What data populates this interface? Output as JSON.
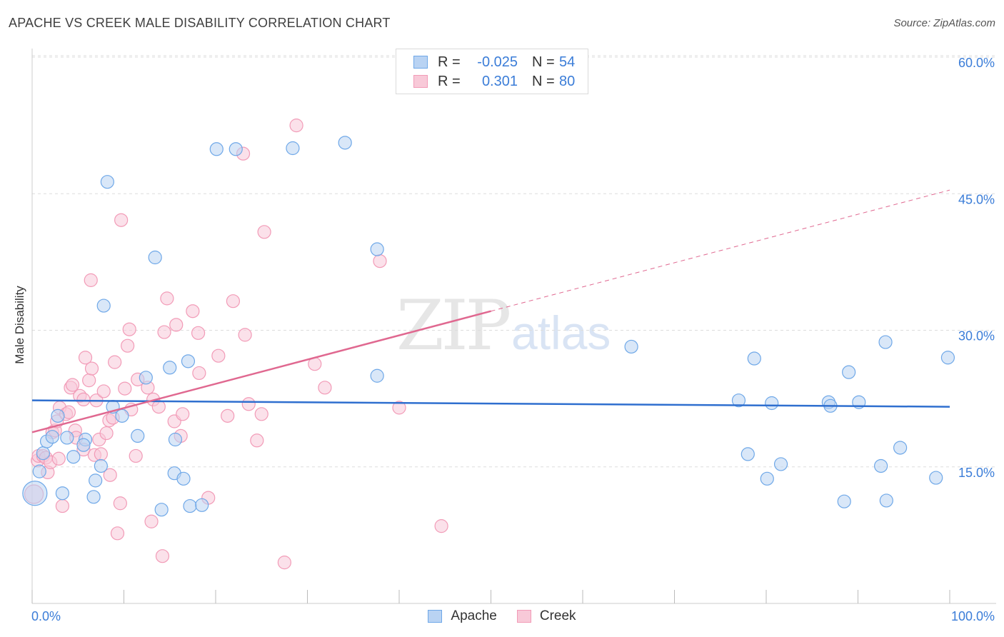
{
  "header": {
    "title": "APACHE VS CREEK MALE DISABILITY CORRELATION CHART",
    "source": "Source: ZipAtlas.com"
  },
  "watermark": {
    "zip": "ZIP",
    "atlas": "atlas"
  },
  "colors": {
    "apache": "#6fa8e8",
    "apache_fill": "#b9d3f3",
    "apache_line": "#2f6fcf",
    "creek": "#f29bb7",
    "creek_fill": "#f8c9d8",
    "creek_line": "#e06890",
    "tick_label": "#3b7dd8",
    "grid": "#dddddd"
  },
  "legend_top": {
    "rows": [
      {
        "r_label": "R =",
        "r_value": "-0.025",
        "n_label": "N =",
        "n_value": "54"
      },
      {
        "r_label": "R =",
        "r_value": "0.301",
        "n_label": "N =",
        "n_value": "80"
      }
    ]
  },
  "legend_bottom": {
    "apache": "Apache",
    "creek": "Creek"
  },
  "chart_data": {
    "type": "scatter",
    "title": "APACHE VS CREEK MALE DISABILITY CORRELATION CHART",
    "xlabel": "",
    "ylabel": "Male Disability",
    "xlim": [
      0,
      100
    ],
    "ylim": [
      0,
      60
    ],
    "x_tick_labels": [
      "0.0%",
      "100.0%"
    ],
    "y_ticks": [
      15,
      30,
      45,
      60
    ],
    "y_tick_labels": [
      "15.0%",
      "30.0%",
      "45.0%",
      "60.0%"
    ],
    "grid": true,
    "series": [
      {
        "name": "Apache",
        "r": -0.025,
        "n": 54,
        "trend": {
          "x0": 0,
          "y0": 22.3,
          "x1": 100,
          "y1": 21.6,
          "dashed_from": null
        },
        "points": [
          [
            0.3,
            12.1,
            3
          ],
          [
            0.8,
            14.5,
            1
          ],
          [
            1.2,
            16.5,
            1
          ],
          [
            1.6,
            17.8,
            1
          ],
          [
            2.2,
            18.3,
            1
          ],
          [
            2.8,
            20.6,
            1
          ],
          [
            3.3,
            12.1,
            1
          ],
          [
            3.8,
            18.2,
            1
          ],
          [
            4.5,
            16.1,
            1
          ],
          [
            5.8,
            18.0,
            1
          ],
          [
            5.6,
            17.4,
            1
          ],
          [
            6.7,
            11.7,
            1
          ],
          [
            6.9,
            13.5,
            1
          ],
          [
            7.5,
            15.1,
            1
          ],
          [
            7.8,
            32.7,
            1
          ],
          [
            8.2,
            46.3,
            1
          ],
          [
            8.8,
            21.6,
            1
          ],
          [
            9.8,
            20.6,
            1
          ],
          [
            11.5,
            18.4,
            1
          ],
          [
            12.4,
            24.8,
            1
          ],
          [
            13.4,
            38.0,
            1
          ],
          [
            14.1,
            10.3,
            1
          ],
          [
            15.0,
            25.9,
            1
          ],
          [
            15.5,
            14.3,
            1
          ],
          [
            15.6,
            18.0,
            1
          ],
          [
            16.5,
            13.7,
            1
          ],
          [
            17.0,
            26.6,
            1
          ],
          [
            17.2,
            10.7,
            1
          ],
          [
            18.5,
            10.8,
            1
          ],
          [
            20.1,
            49.9,
            1
          ],
          [
            22.2,
            49.9,
            1
          ],
          [
            28.4,
            50.0,
            1
          ],
          [
            34.1,
            50.6,
            1
          ],
          [
            37.6,
            38.9,
            1
          ],
          [
            37.6,
            25.0,
            1
          ],
          [
            65.3,
            28.2,
            1
          ],
          [
            77.0,
            22.3,
            1
          ],
          [
            78.7,
            26.9,
            1
          ],
          [
            78.0,
            16.4,
            1
          ],
          [
            80.1,
            13.7,
            1
          ],
          [
            80.6,
            22.0,
            1
          ],
          [
            81.6,
            15.3,
            1
          ],
          [
            86.8,
            22.1,
            1
          ],
          [
            87.0,
            21.7,
            1
          ],
          [
            88.5,
            11.2,
            1
          ],
          [
            89.0,
            25.4,
            1
          ],
          [
            90.1,
            22.1,
            1
          ],
          [
            93.0,
            28.7,
            1
          ],
          [
            92.5,
            15.1,
            1
          ],
          [
            93.1,
            11.3,
            1
          ],
          [
            94.6,
            17.1,
            1
          ],
          [
            98.5,
            13.8,
            1
          ],
          [
            99.8,
            27.0,
            1
          ]
        ]
      },
      {
        "name": "Creek",
        "r": 0.301,
        "n": 80,
        "trend": {
          "x0": 0,
          "y0": 18.8,
          "x1": 100,
          "y1": 45.4,
          "dashed_from": 50
        },
        "points": [
          [
            0.2,
            12.0,
            2
          ],
          [
            0.6,
            15.7,
            1
          ],
          [
            0.7,
            16.2,
            1
          ],
          [
            1.2,
            16.2,
            1
          ],
          [
            1.5,
            16.0,
            1
          ],
          [
            1.7,
            14.4,
            1
          ],
          [
            2.0,
            15.5,
            1
          ],
          [
            2.2,
            18.8,
            1
          ],
          [
            2.5,
            19.0,
            1
          ],
          [
            2.7,
            20.0,
            1
          ],
          [
            2.9,
            15.9,
            1
          ],
          [
            3.0,
            21.5,
            1
          ],
          [
            3.3,
            10.7,
            1
          ],
          [
            3.7,
            20.8,
            1
          ],
          [
            4.0,
            21.0,
            1
          ],
          [
            4.2,
            23.7,
            1
          ],
          [
            4.4,
            24.0,
            1
          ],
          [
            4.7,
            19.0,
            1
          ],
          [
            4.8,
            18.2,
            1
          ],
          [
            5.2,
            22.8,
            1
          ],
          [
            5.6,
            22.4,
            1
          ],
          [
            5.6,
            16.9,
            1
          ],
          [
            5.8,
            27.0,
            1
          ],
          [
            6.2,
            24.5,
            1
          ],
          [
            6.4,
            35.5,
            1
          ],
          [
            6.5,
            25.8,
            1
          ],
          [
            6.8,
            16.3,
            1
          ],
          [
            7.0,
            22.3,
            1
          ],
          [
            7.3,
            18.0,
            1
          ],
          [
            7.5,
            16.4,
            1
          ],
          [
            7.8,
            23.3,
            1
          ],
          [
            8.1,
            18.7,
            1
          ],
          [
            8.4,
            20.1,
            1
          ],
          [
            8.5,
            14.1,
            1
          ],
          [
            8.8,
            20.4,
            1
          ],
          [
            9.0,
            26.5,
            1
          ],
          [
            9.3,
            7.7,
            1
          ],
          [
            9.6,
            11.0,
            1
          ],
          [
            9.7,
            42.1,
            1
          ],
          [
            10.1,
            23.6,
            1
          ],
          [
            10.4,
            28.3,
            1
          ],
          [
            10.6,
            30.1,
            1
          ],
          [
            10.8,
            21.3,
            1
          ],
          [
            11.3,
            16.2,
            1
          ],
          [
            11.5,
            24.6,
            1
          ],
          [
            12.6,
            23.7,
            1
          ],
          [
            13.0,
            9.0,
            1
          ],
          [
            13.2,
            22.4,
            1
          ],
          [
            13.8,
            21.6,
            1
          ],
          [
            14.2,
            5.2,
            1
          ],
          [
            14.4,
            29.8,
            1
          ],
          [
            14.7,
            33.5,
            1
          ],
          [
            15.5,
            20.0,
            1
          ],
          [
            15.7,
            30.6,
            1
          ],
          [
            16.2,
            18.4,
            1
          ],
          [
            16.4,
            20.8,
            1
          ],
          [
            17.5,
            32.1,
            1
          ],
          [
            18.1,
            29.7,
            1
          ],
          [
            18.2,
            25.3,
            1
          ],
          [
            19.2,
            11.6,
            1
          ],
          [
            20.3,
            27.2,
            1
          ],
          [
            21.3,
            20.6,
            1
          ],
          [
            21.9,
            33.2,
            1
          ],
          [
            23.0,
            49.4,
            1
          ],
          [
            23.2,
            29.5,
            1
          ],
          [
            23.6,
            21.9,
            1
          ],
          [
            24.5,
            17.9,
            1
          ],
          [
            25.0,
            20.8,
            1
          ],
          [
            25.3,
            40.8,
            1
          ],
          [
            27.5,
            4.5,
            1
          ],
          [
            28.8,
            52.5,
            1
          ],
          [
            30.8,
            26.3,
            1
          ],
          [
            31.9,
            23.7,
            1
          ],
          [
            37.9,
            37.6,
            1
          ],
          [
            40.0,
            21.5,
            1
          ],
          [
            44.6,
            8.5,
            1
          ]
        ]
      }
    ]
  }
}
